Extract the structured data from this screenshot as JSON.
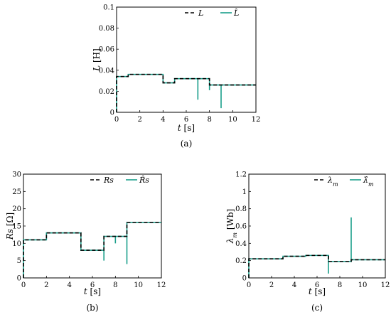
{
  "colors": {
    "estimate": "#1a9e8a",
    "actual": "#000000",
    "axis": "#000000"
  },
  "chart_data": [
    {
      "type": "line",
      "caption": "(a)",
      "ylabel": "L [H]",
      "xlabel": "t [s]",
      "xlim": [
        0,
        12
      ],
      "ylim": [
        0,
        0.1
      ],
      "xticks": [
        "0",
        "2",
        "4",
        "6",
        "8",
        "10",
        "12"
      ],
      "yticks": [
        "0",
        "0.02",
        "0.04",
        "0.06",
        "0.08",
        "0.1"
      ],
      "legend": {
        "position": "top-right",
        "entries": [
          "L",
          "L̂"
        ]
      },
      "series": [
        {
          "name": "L",
          "style": "dashed",
          "x": [
            0,
            0,
            1,
            1,
            4,
            4,
            5,
            5,
            8,
            8,
            12
          ],
          "y": [
            0,
            0.034,
            0.034,
            0.036,
            0.036,
            0.028,
            0.028,
            0.032,
            0.032,
            0.026,
            0.026
          ]
        },
        {
          "name": "L̂",
          "style": "solid",
          "x": [
            0,
            0,
            1,
            1,
            4,
            4,
            5,
            5,
            7,
            7,
            7,
            8,
            8,
            8,
            8,
            9,
            9,
            9,
            12
          ],
          "y": [
            0,
            0.034,
            0.034,
            0.036,
            0.036,
            0.028,
            0.028,
            0.032,
            0.032,
            0.012,
            0.032,
            0.032,
            0.021,
            0.029,
            0.026,
            0.026,
            0.004,
            0.026,
            0.026
          ]
        }
      ]
    },
    {
      "type": "line",
      "caption": "(b)",
      "ylabel": "Rs [Ω]",
      "xlabel": "t [s]",
      "xlim": [
        0,
        12
      ],
      "ylim": [
        0,
        30
      ],
      "xticks": [
        "0",
        "2",
        "4",
        "6",
        "8",
        "10",
        "12"
      ],
      "yticks": [
        "0",
        "5",
        "10",
        "15",
        "20",
        "25",
        "30"
      ],
      "legend": {
        "position": "top-right",
        "entries": [
          "Rs",
          "R̂s"
        ]
      },
      "series": [
        {
          "name": "Rs",
          "style": "dashed",
          "x": [
            0,
            0,
            2,
            2,
            5,
            5,
            7,
            7,
            9,
            9,
            12
          ],
          "y": [
            0,
            11,
            11,
            13,
            13,
            8,
            8,
            12,
            12,
            16,
            16
          ]
        },
        {
          "name": "R̂s",
          "style": "solid",
          "x": [
            0,
            0,
            2,
            2,
            5,
            5,
            7,
            7,
            7,
            8,
            8,
            8,
            9,
            9,
            9,
            12
          ],
          "y": [
            0,
            11,
            11,
            13,
            13,
            8,
            8,
            5,
            12,
            12,
            10,
            12,
            12,
            4,
            16,
            16
          ]
        }
      ]
    },
    {
      "type": "line",
      "caption": "(c)",
      "ylabel": "λm [Wb]",
      "xlabel": "t [s]",
      "xlim": [
        0,
        12
      ],
      "ylim": [
        0,
        1.2
      ],
      "xticks": [
        "0",
        "2",
        "4",
        "6",
        "8",
        "10",
        "12"
      ],
      "yticks": [
        "0",
        "0.2",
        "0.4",
        "0.6",
        "0.8",
        "1",
        "1.2"
      ],
      "legend": {
        "position": "top-right",
        "entries": [
          "λm",
          "λ̂m"
        ]
      },
      "series": [
        {
          "name": "λm",
          "style": "dashed",
          "x": [
            0,
            0,
            3,
            3,
            5,
            5,
            7,
            7,
            9,
            9,
            12
          ],
          "y": [
            0,
            0.22,
            0.22,
            0.25,
            0.25,
            0.26,
            0.26,
            0.19,
            0.19,
            0.21,
            0.21
          ]
        },
        {
          "name": "λ̂m",
          "style": "solid",
          "x": [
            0,
            0,
            3,
            3,
            5,
            5,
            7,
            7,
            7,
            9,
            9,
            9,
            12
          ],
          "y": [
            0,
            0.22,
            0.22,
            0.25,
            0.25,
            0.26,
            0.26,
            0.05,
            0.19,
            0.19,
            0.7,
            0.21,
            0.21
          ]
        }
      ]
    }
  ]
}
